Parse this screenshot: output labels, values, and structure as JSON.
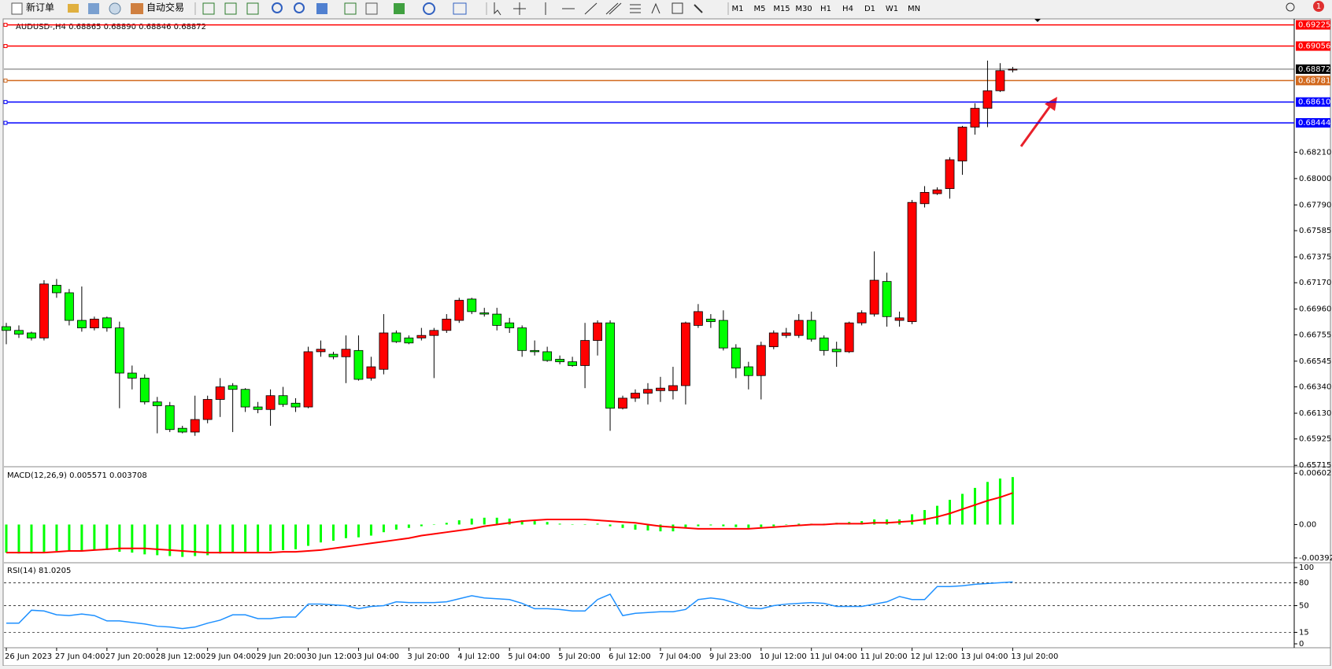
{
  "toolbar": {
    "new_order": "新订单",
    "auto_trading": "自动交易",
    "timeframes": [
      "M1",
      "M5",
      "M15",
      "M30",
      "H1",
      "H4",
      "D1",
      "W1",
      "MN"
    ]
  },
  "notification_count": "1",
  "chart_data": [
    {
      "type": "candlestick",
      "title": "AUDUSD-,H4  0.68865 0.68890 0.68846 0.68872",
      "up_color": "#ff0000",
      "down_color": "#00ff00",
      "price_line_color": "#000000",
      "categories": [
        "26 Jun 2023",
        null,
        null,
        null,
        "27 Jun 04:00",
        null,
        null,
        null,
        "27 Jun 20:00",
        null,
        null,
        null,
        "28 Jun 12:00",
        null,
        null,
        null,
        "29 Jun 04:00",
        null,
        null,
        null,
        "29 Jun 20:00",
        null,
        null,
        null,
        "30 Jun 12:00",
        null,
        null,
        null,
        "3 Jul 04:00",
        null,
        null,
        null,
        "3 Jul 20:00",
        null,
        null,
        null,
        "4 Jul 12:00",
        null,
        null,
        null,
        "5 Jul 04:00",
        null,
        null,
        null,
        "5 Jul 20:00",
        null,
        null,
        null,
        "6 Jul 12:00",
        null,
        null,
        null,
        "7 Jul 04:00",
        null,
        null,
        null,
        "9 Jul 23:00",
        null,
        null,
        null,
        "10 Jul 12:00",
        null,
        null,
        null,
        "11 Jul 04:00",
        null,
        null,
        null,
        "11 Jul 20:00",
        null,
        null,
        null,
        "12 Jul 12:00",
        null,
        null,
        null,
        "13 Jul 04:00",
        null,
        null,
        null,
        "13 Jul 20:00"
      ],
      "ohlc": [
        [
          0.6682,
          0.6685,
          0.6668,
          0.6679
        ],
        [
          0.6679,
          0.6683,
          0.6673,
          0.6676
        ],
        [
          0.6677,
          0.6678,
          0.6671,
          0.6673
        ],
        [
          0.6673,
          0.6719,
          0.6671,
          0.6716
        ],
        [
          0.6715,
          0.672,
          0.6705,
          0.6709
        ],
        [
          0.6709,
          0.6712,
          0.6683,
          0.6687
        ],
        [
          0.6687,
          0.6714,
          0.6678,
          0.6681
        ],
        [
          0.6681,
          0.669,
          0.6679,
          0.6688
        ],
        [
          0.6689,
          0.669,
          0.6678,
          0.6681
        ],
        [
          0.6681,
          0.6686,
          0.6617,
          0.6645
        ],
        [
          0.6645,
          0.6651,
          0.6632,
          0.6641
        ],
        [
          0.6641,
          0.6644,
          0.662,
          0.6622
        ],
        [
          0.6622,
          0.6626,
          0.6597,
          0.6619
        ],
        [
          0.6619,
          0.6622,
          0.6598,
          0.66
        ],
        [
          0.6601,
          0.6603,
          0.6597,
          0.6598
        ],
        [
          0.6598,
          0.6627,
          0.6595,
          0.6608
        ],
        [
          0.6608,
          0.6627,
          0.6605,
          0.6624
        ],
        [
          0.6624,
          0.6641,
          0.661,
          0.6634
        ],
        [
          0.6635,
          0.6637,
          0.6598,
          0.6632
        ],
        [
          0.6632,
          0.6633,
          0.6614,
          0.6618
        ],
        [
          0.6618,
          0.6622,
          0.6613,
          0.6616
        ],
        [
          0.6616,
          0.6632,
          0.6603,
          0.6627
        ],
        [
          0.6627,
          0.6634,
          0.6618,
          0.662
        ],
        [
          0.6621,
          0.6625,
          0.6614,
          0.6618
        ],
        [
          0.6618,
          0.6666,
          0.6617,
          0.6662
        ],
        [
          0.6662,
          0.6671,
          0.6658,
          0.6664
        ],
        [
          0.666,
          0.6662,
          0.6656,
          0.6658
        ],
        [
          0.6658,
          0.6675,
          0.6637,
          0.6664
        ],
        [
          0.6663,
          0.6675,
          0.6639,
          0.664
        ],
        [
          0.6641,
          0.6658,
          0.6639,
          0.665
        ],
        [
          0.6648,
          0.6692,
          0.6644,
          0.6677
        ],
        [
          0.6677,
          0.6679,
          0.6669,
          0.667
        ],
        [
          0.6673,
          0.6675,
          0.6668,
          0.6669
        ],
        [
          0.6673,
          0.6681,
          0.6671,
          0.6675
        ],
        [
          0.6675,
          0.6681,
          0.6641,
          0.6679
        ],
        [
          0.6679,
          0.6692,
          0.6677,
          0.6688
        ],
        [
          0.6687,
          0.6705,
          0.6685,
          0.6703
        ],
        [
          0.6704,
          0.6705,
          0.6692,
          0.6694
        ],
        [
          0.6693,
          0.6697,
          0.669,
          0.6692
        ],
        [
          0.6692,
          0.6697,
          0.6679,
          0.6683
        ],
        [
          0.6685,
          0.6689,
          0.6677,
          0.6681
        ],
        [
          0.6681,
          0.6683,
          0.6658,
          0.6663
        ],
        [
          0.6663,
          0.6671,
          0.6659,
          0.6662
        ],
        [
          0.6662,
          0.6666,
          0.6654,
          0.6655
        ],
        [
          0.6656,
          0.6659,
          0.6652,
          0.6654
        ],
        [
          0.6654,
          0.6658,
          0.665,
          0.6651
        ],
        [
          0.6651,
          0.6685,
          0.6633,
          0.6671
        ],
        [
          0.6671,
          0.6687,
          0.6659,
          0.6685
        ],
        [
          0.6685,
          0.6687,
          0.6599,
          0.6617
        ],
        [
          0.6617,
          0.6627,
          0.6616,
          0.6625
        ],
        [
          0.6625,
          0.6632,
          0.6622,
          0.6629
        ],
        [
          0.6629,
          0.6637,
          0.662,
          0.6632
        ],
        [
          0.6631,
          0.6642,
          0.6622,
          0.6633
        ],
        [
          0.6631,
          0.665,
          0.6624,
          0.6635
        ],
        [
          0.6635,
          0.6686,
          0.662,
          0.6685
        ],
        [
          0.6683,
          0.67,
          0.6681,
          0.6694
        ],
        [
          0.6688,
          0.6692,
          0.6681,
          0.6686
        ],
        [
          0.6687,
          0.6695,
          0.6663,
          0.6665
        ],
        [
          0.6665,
          0.6668,
          0.6641,
          0.6649
        ],
        [
          0.665,
          0.6654,
          0.6632,
          0.6643
        ],
        [
          0.6643,
          0.667,
          0.6624,
          0.6667
        ],
        [
          0.6666,
          0.6679,
          0.6664,
          0.6677
        ],
        [
          0.6675,
          0.6681,
          0.6673,
          0.6677
        ],
        [
          0.6675,
          0.6692,
          0.6673,
          0.6687
        ],
        [
          0.6687,
          0.6694,
          0.667,
          0.6672
        ],
        [
          0.6673,
          0.6675,
          0.6659,
          0.6663
        ],
        [
          0.6664,
          0.667,
          0.665,
          0.6662
        ],
        [
          0.6662,
          0.6686,
          0.6661,
          0.6685
        ],
        [
          0.6685,
          0.6695,
          0.6683,
          0.6693
        ],
        [
          0.6692,
          0.6742,
          0.669,
          0.6719
        ],
        [
          0.6718,
          0.6725,
          0.6682,
          0.669
        ],
        [
          0.6687,
          0.6694,
          0.6682,
          0.6689
        ],
        [
          0.6686,
          0.6783,
          0.6684,
          0.6781
        ],
        [
          0.678,
          0.6794,
          0.6777,
          0.6789
        ],
        [
          0.6788,
          0.6793,
          0.6787,
          0.6791
        ],
        [
          0.6792,
          0.6817,
          0.6784,
          0.6815
        ],
        [
          0.6814,
          0.6842,
          0.6803,
          0.6841
        ],
        [
          0.6841,
          0.686,
          0.6835,
          0.6856
        ],
        [
          0.6856,
          0.6894,
          0.6841,
          0.687
        ],
        [
          0.687,
          0.6892,
          0.6869,
          0.6886
        ],
        [
          0.68865,
          0.6889,
          0.68846,
          0.68872
        ]
      ],
      "ylim": [
        0.6571,
        0.6926
      ],
      "yticks": [
        {
          "value": 0.6821,
          "label": "0.68210"
        },
        {
          "value": 0.68,
          "label": "0.68000"
        },
        {
          "value": 0.6779,
          "label": "0.67790"
        },
        0.67585,
        0.67375,
        {
          "value": 0.6717,
          "label": "0.67170"
        },
        {
          "value": 0.6696,
          "label": "0.66960"
        },
        0.66755,
        0.66545,
        {
          "value": 0.6634,
          "label": "0.66340"
        },
        {
          "value": 0.6613,
          "label": "0.66130"
        },
        0.65925,
        0.65715
      ],
      "levels": [
        {
          "value": 0.69225,
          "color": "#ff0000"
        },
        {
          "value": 0.69056,
          "color": "#ff0000"
        },
        {
          "value": 0.68781,
          "color": "#d2691e"
        },
        {
          "value": 0.6861,
          "label": "0.68610",
          "color": "#0000ff"
        },
        {
          "value": 0.68444,
          "color": "#0000ff"
        }
      ]
    },
    {
      "type": "macd",
      "title": "MACD(12,26,9) 0.005571 0.003708",
      "ylim": [
        -0.0043,
        0.0066
      ],
      "yticks": [
        0.006023,
        {
          "value": 0,
          "label": "0.00"
        },
        -0.003921
      ],
      "series": [
        {
          "kind": "bar",
          "color": "#00ff00",
          "values": [
            -0.0033,
            -0.0034,
            -0.0034,
            -0.0033,
            -0.0031,
            -0.0031,
            -0.0031,
            -0.003,
            -0.003,
            -0.0032,
            -0.0033,
            -0.0035,
            -0.0036,
            -0.0037,
            -0.0038,
            -0.0037,
            -0.0036,
            -0.0034,
            -0.0033,
            -0.0032,
            -0.0032,
            -0.0031,
            -0.003,
            -0.0029,
            -0.0025,
            -0.0021,
            -0.0019,
            -0.0016,
            -0.0015,
            -0.0013,
            -0.0009,
            -0.0006,
            -0.0004,
            -0.0002,
            0,
            0.0002,
            0.0005,
            0.0007,
            0.0008,
            0.0008,
            0.0007,
            0.0005,
            0.0004,
            0.0003,
            0.0001,
            0,
            0,
            0.0001,
            -0.0002,
            -0.0004,
            -0.0006,
            -0.0007,
            -0.0008,
            -0.0008,
            -0.0004,
            -0.0002,
            -0.0001,
            -0.0002,
            -0.0003,
            -0.0004,
            -0.0003,
            -0.0002,
            0,
            0.0001,
            0.0001,
            0.0001,
            0.0002,
            0.0003,
            0.0004,
            0.0006,
            0.0006,
            0.0006,
            0.0012,
            0.0017,
            0.0022,
            0.0029,
            0.0036,
            0.0043,
            0.005,
            0.0054,
            0.005571
          ]
        },
        {
          "kind": "line",
          "color": "#ff0000",
          "values": [
            -0.0033,
            -0.0033,
            -0.0033,
            -0.0033,
            -0.0032,
            -0.0031,
            -0.0031,
            -0.003,
            -0.0029,
            -0.0028,
            -0.0028,
            -0.0028,
            -0.0029,
            -0.003,
            -0.0031,
            -0.0032,
            -0.0033,
            -0.0033,
            -0.0033,
            -0.0033,
            -0.0033,
            -0.0033,
            -0.0032,
            -0.0032,
            -0.0031,
            -0.003,
            -0.0028,
            -0.0026,
            -0.0024,
            -0.0022,
            -0.002,
            -0.0018,
            -0.0016,
            -0.0013,
            -0.0011,
            -0.0009,
            -0.0007,
            -0.0005,
            -0.0002,
            0,
            0.0002,
            0.0004,
            0.0005,
            0.0006,
            0.0006,
            0.0006,
            0.0006,
            0.0005,
            0.0004,
            0.0003,
            0.0002,
            0,
            -0.0002,
            -0.0003,
            -0.0004,
            -0.0005,
            -0.0005,
            -0.0005,
            -0.0005,
            -0.0005,
            -0.0004,
            -0.0003,
            -0.0002,
            -0.0001,
            0,
            0,
            0.0001,
            0.0001,
            0.0001,
            0.0002,
            0.0002,
            0.0003,
            0.0004,
            0.0006,
            0.0009,
            0.0013,
            0.0018,
            0.0023,
            0.0028,
            0.0032,
            0.003708
          ]
        }
      ]
    },
    {
      "type": "line",
      "title": "RSI(14) 81.0205",
      "color": "#1e90ff",
      "ylim": [
        0,
        100
      ],
      "yticks": [
        0,
        15,
        50,
        80,
        100
      ],
      "levels": [
        15,
        50,
        80
      ],
      "values": [
        27,
        27,
        44,
        43,
        38,
        37,
        39,
        37,
        30,
        30,
        28,
        26,
        23,
        22,
        20,
        22,
        27,
        31,
        38,
        38,
        33,
        33,
        35,
        35,
        52,
        52,
        51,
        50,
        46,
        49,
        50,
        55,
        54,
        54,
        54,
        55,
        59,
        63,
        60,
        59,
        58,
        53,
        46,
        46,
        45,
        43,
        43,
        58,
        65,
        37,
        40,
        41,
        42,
        42,
        45,
        58,
        60,
        58,
        53,
        47,
        46,
        50,
        52,
        53,
        54,
        53,
        49,
        49,
        49,
        52,
        55,
        62,
        58,
        58,
        75,
        75,
        76,
        78,
        79,
        80,
        81.0205
      ]
    }
  ]
}
